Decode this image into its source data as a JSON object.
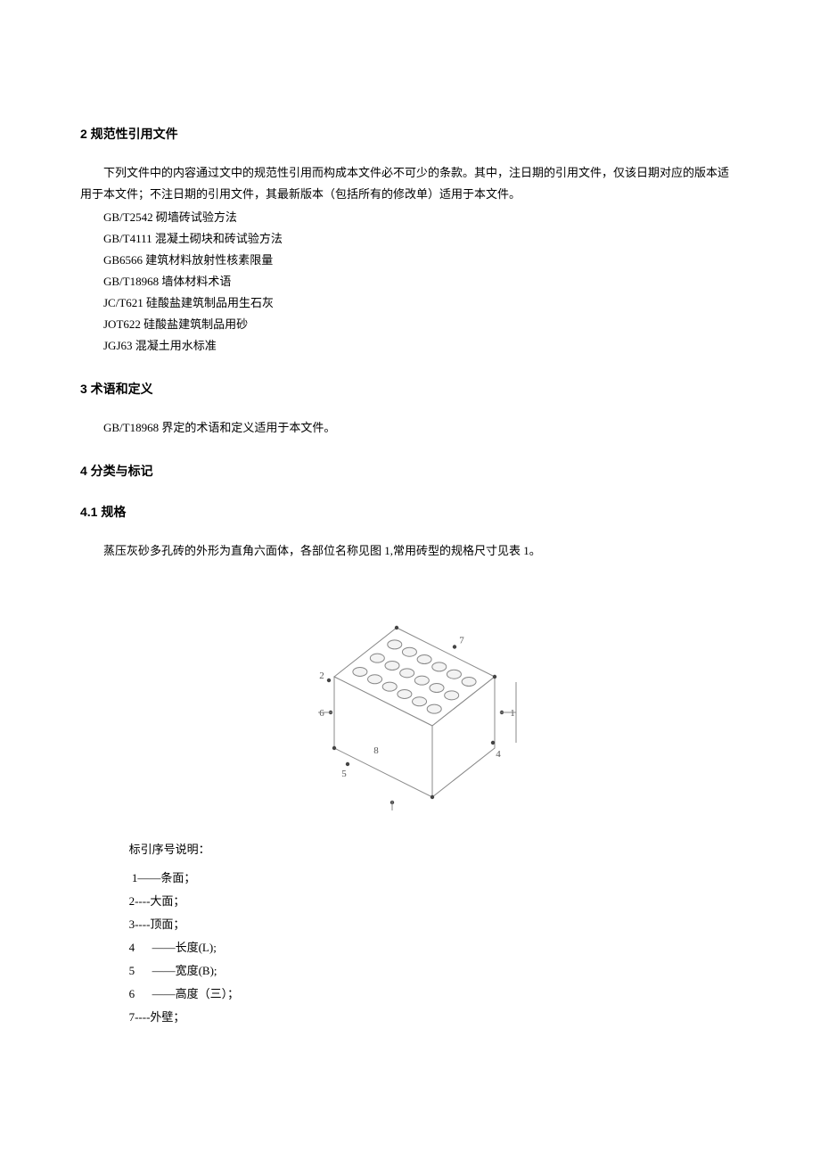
{
  "sections": {
    "s2": {
      "heading": "2 规范性引用文件",
      "intro": "下列文件中的内容通过文中的规范性引用而构成本文件必不可少的条款。其中，注日期的引用文件，仅该日期对应的版本适用于本文件；不注日期的引用文件，其最新版本（包括所有的修改单）适用于本文件。",
      "refs": [
        "GB/T2542 砌墙砖试验方法",
        "GB/T4111 混凝土砌块和砖试验方法",
        "GB6566 建筑材料放射性核素限量",
        "GB/T18968 墙体材料术语",
        "JC/T621 硅酸盐建筑制品用生石灰",
        "JOT622 硅酸盐建筑制品用砂",
        "JGJ63 混凝土用水标准"
      ]
    },
    "s3": {
      "heading": "3 术语和定义",
      "para": "GB/T18968 界定的术语和定义适用于本文件。"
    },
    "s4": {
      "heading": "4 分类与标记"
    },
    "s4_1": {
      "heading": "4.1 规格",
      "para": "蒸压灰砂多孔砖的外形为直角六面体，各部位名称见图 1,常用砖型的规格尺寸见表 1。"
    }
  },
  "figure": {
    "stroke_color": "#888888",
    "hole_fill": "#f3f3f3",
    "dot_color": "#444444",
    "line_width": 1
  },
  "legend": {
    "title": "标引序号说明：",
    "items": [
      " 1——条面；",
      "2----大面；",
      "3----顶面；",
      "4      ——长度(L);",
      "5      ——宽度(B);",
      "6      ——高度（三）；",
      "7----外壁；"
    ]
  }
}
